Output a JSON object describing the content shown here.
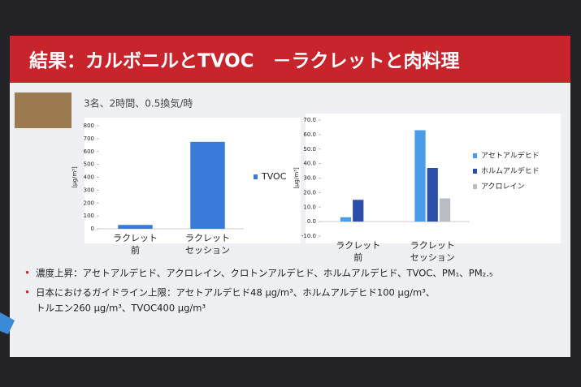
{
  "slide": {
    "title": "結果：カルボニルとTVOC　－ラクレットと肉料理",
    "subtitle": "3名、2時間、0.5換気/時",
    "bullets": [
      [
        "濃度上昇：アセトアルデヒド、アクロレイン、クロトンアルデヒド、ホルムアルデヒド、TVOC、PM₁、PM₂.₅"
      ],
      [
        "日本におけるガイドライン上限：アセトアルデヒド48 μg/m³、ホルムアルデヒド100 μg/m³、",
        "トルエン260 μg/m³、TVOC400 μg/m³"
      ]
    ]
  },
  "chart_data": [
    {
      "type": "bar",
      "ylabel": "[μg/m³]",
      "categories": [
        [
          "ラクレット",
          "前"
        ],
        [
          "ラクレット",
          "セッション"
        ]
      ],
      "series": [
        {
          "name": "TVOC",
          "color": "#3a7ad8",
          "values": [
            30,
            675
          ]
        }
      ],
      "ylim": [
        0,
        800
      ],
      "yticks": [
        0,
        100,
        200,
        300,
        400,
        500,
        600,
        700,
        800
      ]
    },
    {
      "type": "bar",
      "ylabel": "[μg/m³]",
      "categories": [
        [
          "ラクレット",
          "前"
        ],
        [
          "ラクレット",
          "セッション"
        ]
      ],
      "series": [
        {
          "name": "アセトアルデヒド",
          "color": "#4a9be8",
          "values": [
            3,
            63
          ]
        },
        {
          "name": "ホルムアルデヒド",
          "color": "#2b4fa8",
          "values": [
            15,
            37
          ]
        },
        {
          "name": "アクロレイン",
          "color": "#b8bcc4",
          "values": [
            0,
            16
          ]
        }
      ],
      "ylim": [
        -10,
        70
      ],
      "yticks": [
        {
          "value": -10,
          "label": "-10.0"
        },
        {
          "value": 0,
          "label": "0.0"
        },
        {
          "value": 10,
          "label": "10.0"
        },
        {
          "value": 20,
          "label": "20.0"
        },
        {
          "value": 30,
          "label": "30.0"
        },
        {
          "value": 40,
          "label": "40.0"
        },
        {
          "value": 50,
          "label": "50.0"
        },
        {
          "value": 60,
          "label": "60.0"
        },
        {
          "value": 70,
          "label": "70.0"
        }
      ]
    }
  ]
}
